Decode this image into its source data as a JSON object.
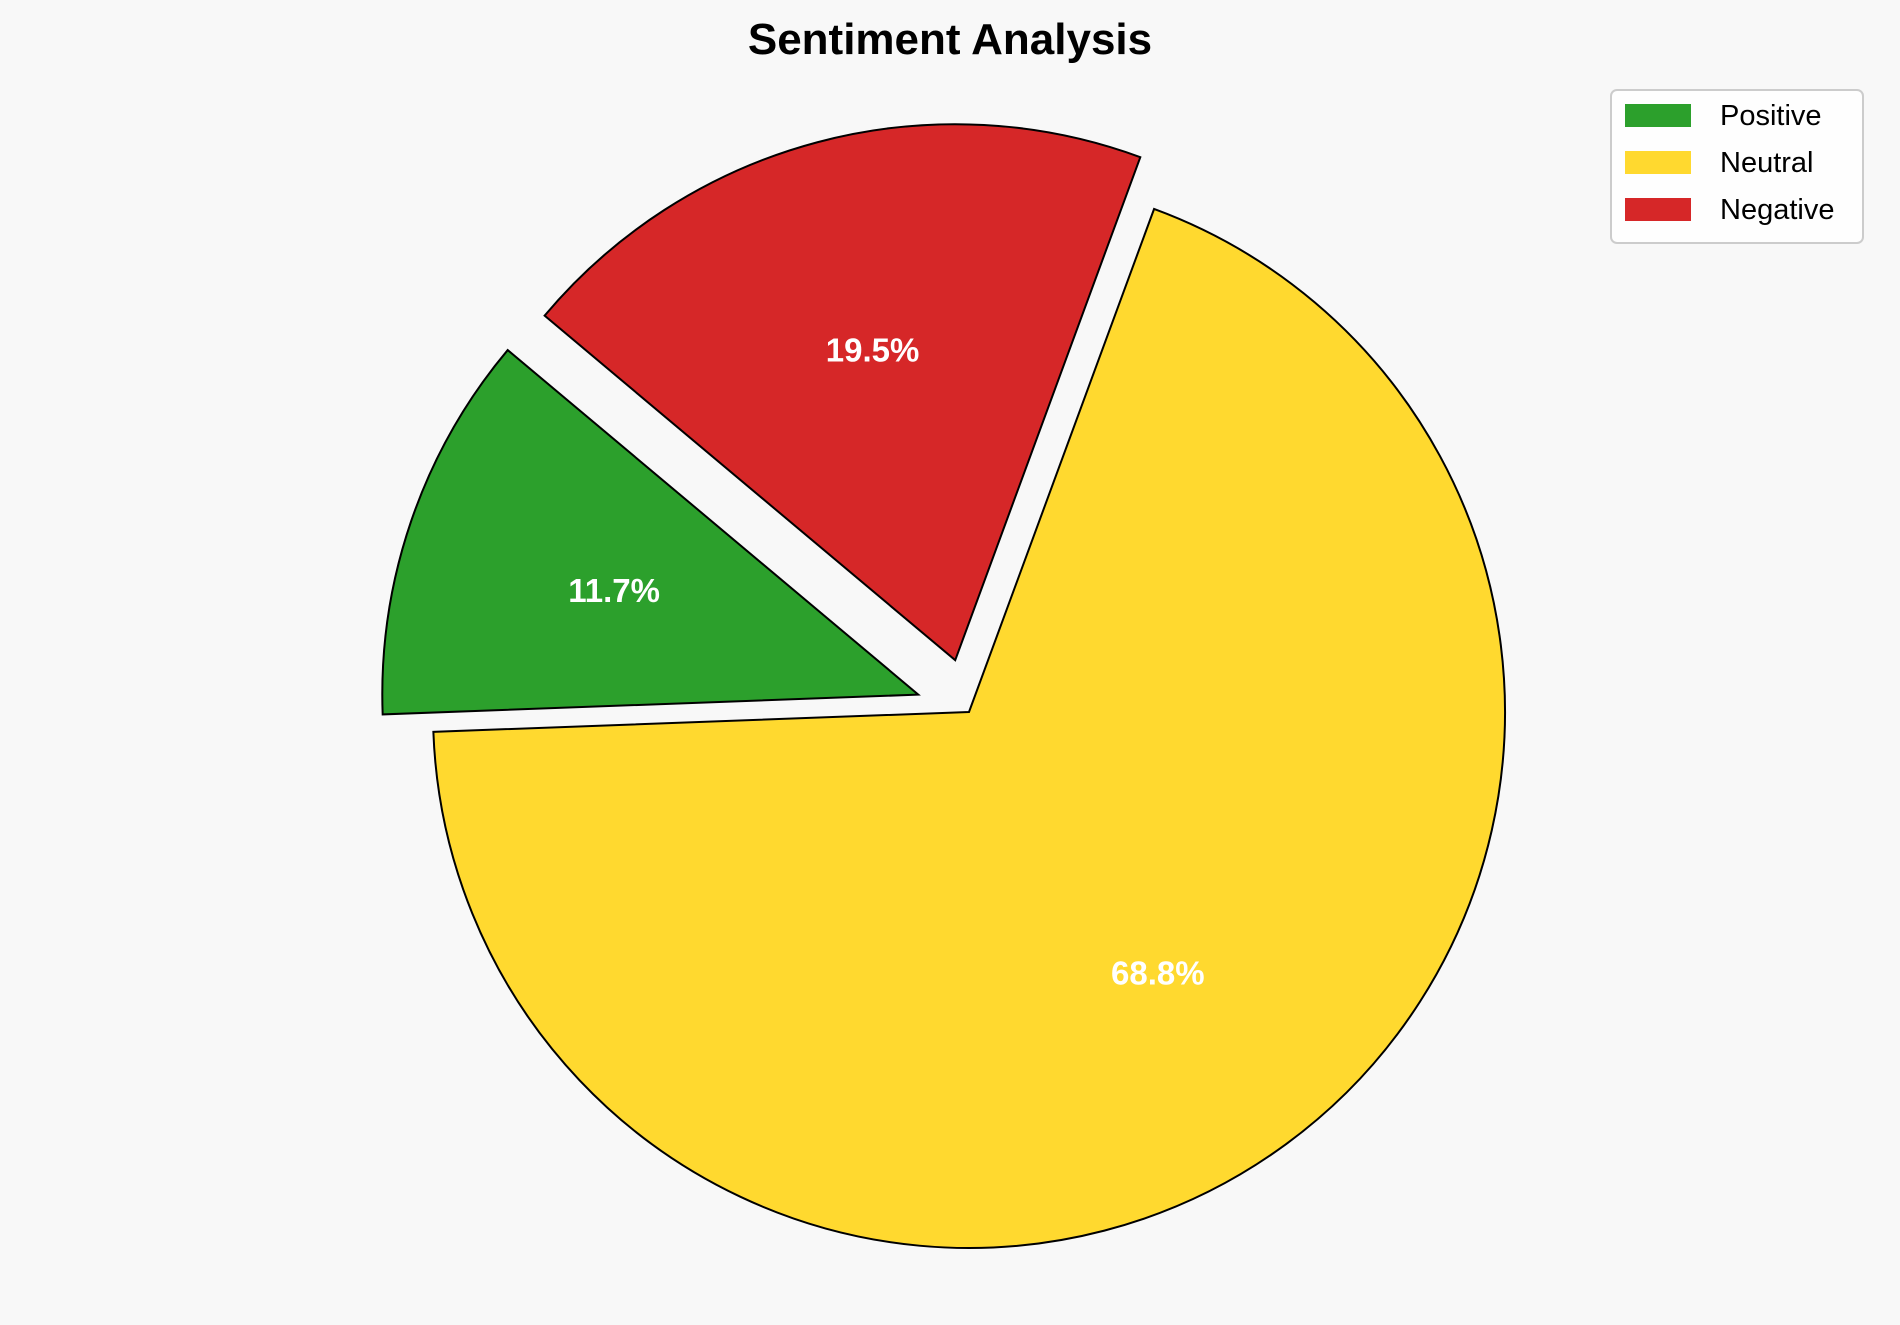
{
  "chart_data": {
    "type": "pie",
    "title": "Sentiment Analysis",
    "categories": [
      "Positive",
      "Neutral",
      "Negative"
    ],
    "values": [
      11.7,
      68.8,
      19.5
    ],
    "labels": [
      "11.7%",
      "68.8%",
      "19.5%"
    ],
    "colors": [
      "#2ca02c",
      "#ffd92f",
      "#d62728"
    ],
    "explode": [
      0.1,
      0,
      0.1
    ],
    "start_angle_deg": 140,
    "direction": "counterclockwise",
    "edge_color": "#000000",
    "legend_placement": "top-right"
  }
}
